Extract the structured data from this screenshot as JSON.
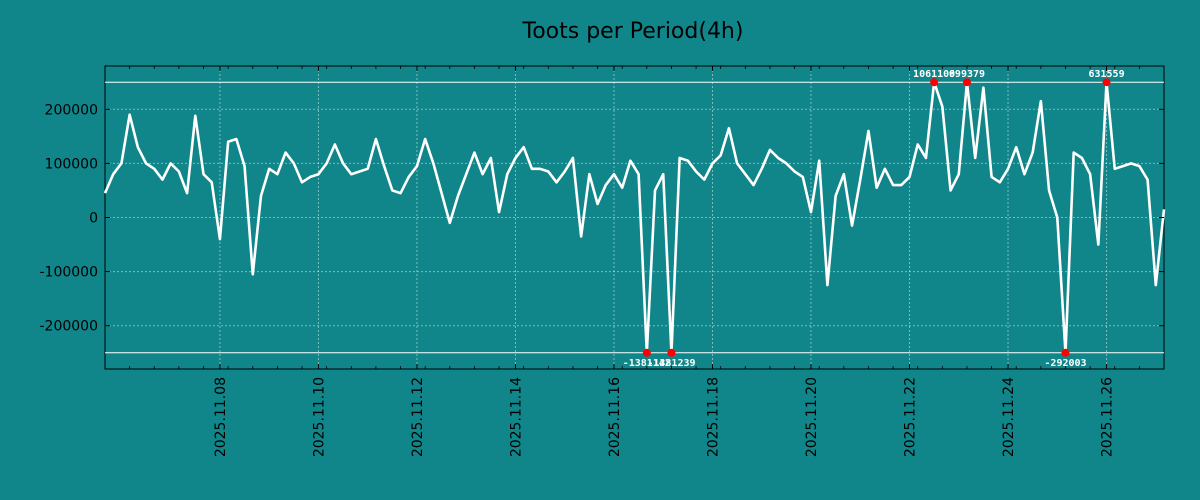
{
  "chart_data": {
    "type": "line",
    "title": "Toots per Period(4h)",
    "xlabel": "",
    "ylabel": "",
    "ylim": [
      -280000,
      280000
    ],
    "grid": true,
    "series_color": "#ffffff",
    "background_color": "#11868a",
    "marker_color": "#ff0000",
    "y_ticks": [
      {
        "value": 200000,
        "label": "200000"
      },
      {
        "value": 100000,
        "label": "100000"
      },
      {
        "value": 0,
        "label": "0"
      },
      {
        "value": -100000,
        "label": "-100000"
      },
      {
        "value": -200000,
        "label": "-200000"
      }
    ],
    "x_ticks": [
      {
        "index": 14,
        "label": "2025.11.08"
      },
      {
        "index": 26,
        "label": "2025.11.10"
      },
      {
        "index": 38,
        "label": "2025.11.12"
      },
      {
        "index": 50,
        "label": "2025.11.14"
      },
      {
        "index": 62,
        "label": "2025.11.16"
      },
      {
        "index": 74,
        "label": "2025.11.18"
      },
      {
        "index": 86,
        "label": "2025.11.20"
      },
      {
        "index": 98,
        "label": "2025.11.22"
      },
      {
        "index": 110,
        "label": "2025.11.24"
      },
      {
        "index": 122,
        "label": "2025.11.26"
      }
    ],
    "clip_limits": [
      250000,
      -250000
    ],
    "values": [
      45000,
      80000,
      100000,
      190000,
      130000,
      100000,
      90000,
      70000,
      100000,
      85000,
      45000,
      188000,
      80000,
      65000,
      -40000,
      140000,
      145000,
      95000,
      -105000,
      40000,
      90000,
      80000,
      120000,
      100000,
      65000,
      75000,
      80000,
      100000,
      135000,
      100000,
      80000,
      85000,
      90000,
      145000,
      95000,
      50000,
      45000,
      75000,
      95000,
      145000,
      100000,
      45000,
      -10000,
      40000,
      80000,
      120000,
      80000,
      110000,
      10000,
      80000,
      110000,
      130000,
      90000,
      90000,
      85000,
      65000,
      85000,
      110000,
      -35000,
      80000,
      25000,
      60000,
      80000,
      55000,
      105000,
      80000,
      -250000,
      50000,
      80000,
      -250000,
      110000,
      105000,
      85000,
      70000,
      100000,
      115000,
      165000,
      100000,
      80000,
      60000,
      90000,
      125000,
      110000,
      100000,
      85000,
      75000,
      10000,
      105000,
      -125000,
      40000,
      80000,
      -15000,
      70000,
      160000,
      55000,
      90000,
      60000,
      60000,
      75000,
      135000,
      110000,
      250000,
      205000,
      50000,
      80000,
      250000,
      110000,
      240000,
      75000,
      65000,
      90000,
      130000,
      80000,
      120000,
      215000,
      50000,
      0,
      -250000,
      120000,
      110000,
      80000,
      -50000,
      250000,
      90000,
      95000,
      100000,
      95000,
      70000,
      -125000,
      15000
    ],
    "annotations": [
      {
        "index": 66,
        "position": "bottom",
        "label": "-1381142"
      },
      {
        "index": 69,
        "position": "bottom",
        "label": "-1381239"
      },
      {
        "index": 101,
        "position": "top",
        "label": "1061109"
      },
      {
        "index": 105,
        "position": "top",
        "label": "699379"
      },
      {
        "index": 117,
        "position": "bottom",
        "label": "-292003"
      },
      {
        "index": 122,
        "position": "top",
        "label": "631559"
      }
    ]
  }
}
